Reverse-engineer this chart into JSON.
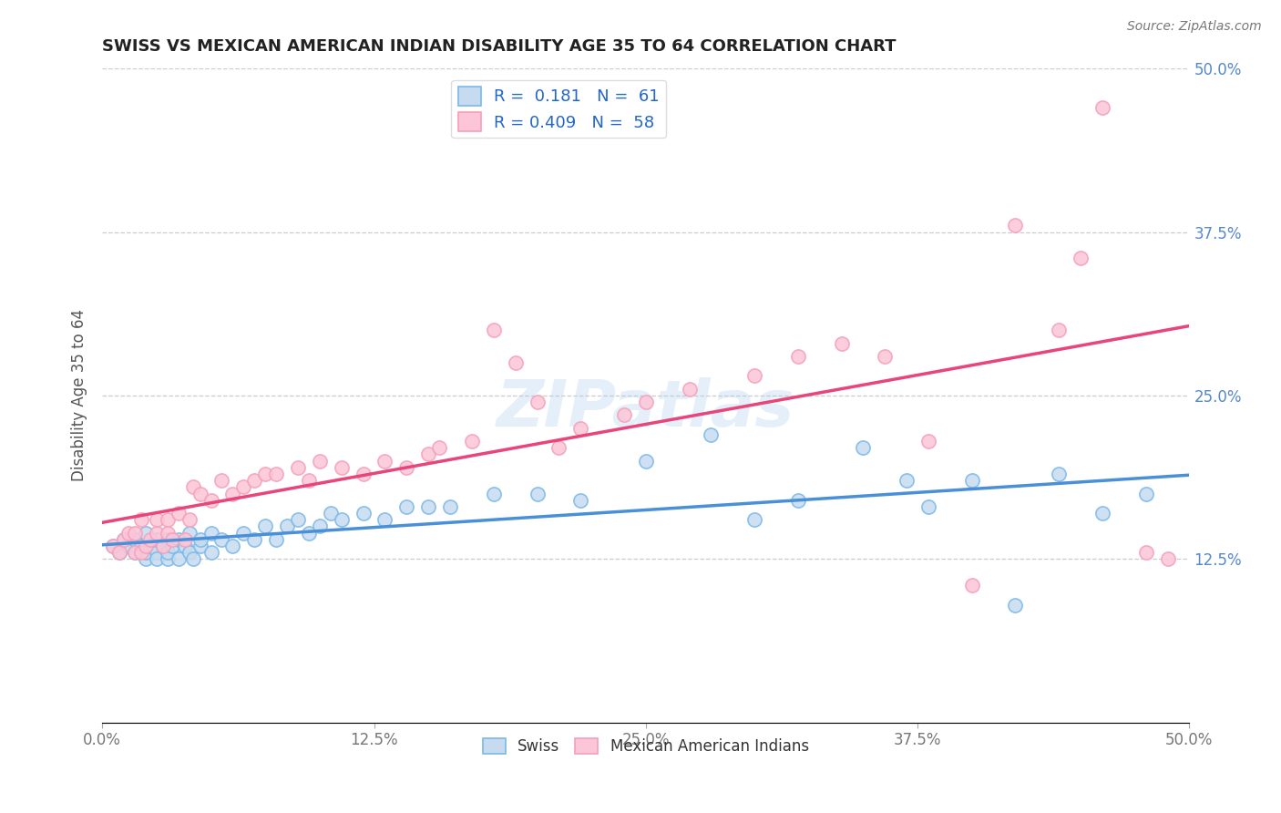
{
  "title": "SWISS VS MEXICAN AMERICAN INDIAN DISABILITY AGE 35 TO 64 CORRELATION CHART",
  "source_text": "Source: ZipAtlas.com",
  "ylabel": "Disability Age 35 to 64",
  "xlim": [
    0.0,
    0.5
  ],
  "ylim": [
    0.0,
    0.5
  ],
  "xtick_vals": [
    0.0,
    0.125,
    0.25,
    0.375,
    0.5
  ],
  "xtick_labels": [
    "0.0%",
    "12.5%",
    "25.0%",
    "37.5%",
    "50.0%"
  ],
  "ytick_vals": [
    0.0,
    0.125,
    0.25,
    0.375,
    0.5
  ],
  "ytick_labels_right": [
    "",
    "12.5%",
    "25.0%",
    "37.5%",
    "50.0%"
  ],
  "legend1_R": "0.181",
  "legend1_N": "61",
  "legend2_R": "0.409",
  "legend2_N": "58",
  "blue_color": "#7ab8e8",
  "pink_color": "#f4a0b8",
  "blue_fill": "#c6dbef",
  "pink_fill": "#fcc5d8",
  "trend_blue": "#4a90d9",
  "trend_pink": "#e8457a",
  "swiss_x": [
    0.005,
    0.008,
    0.01,
    0.012,
    0.015,
    0.015,
    0.018,
    0.02,
    0.02,
    0.02,
    0.022,
    0.025,
    0.025,
    0.025,
    0.028,
    0.03,
    0.03,
    0.03,
    0.032,
    0.035,
    0.035,
    0.038,
    0.04,
    0.04,
    0.042,
    0.045,
    0.045,
    0.05,
    0.05,
    0.055,
    0.06,
    0.065,
    0.07,
    0.075,
    0.08,
    0.085,
    0.09,
    0.095,
    0.1,
    0.105,
    0.11,
    0.12,
    0.13,
    0.14,
    0.15,
    0.16,
    0.18,
    0.2,
    0.22,
    0.25,
    0.28,
    0.3,
    0.32,
    0.35,
    0.37,
    0.38,
    0.4,
    0.42,
    0.44,
    0.46,
    0.48
  ],
  "swiss_y": [
    0.135,
    0.13,
    0.14,
    0.135,
    0.13,
    0.14,
    0.135,
    0.125,
    0.13,
    0.145,
    0.135,
    0.13,
    0.125,
    0.14,
    0.135,
    0.125,
    0.13,
    0.14,
    0.135,
    0.125,
    0.14,
    0.135,
    0.13,
    0.145,
    0.125,
    0.135,
    0.14,
    0.13,
    0.145,
    0.14,
    0.135,
    0.145,
    0.14,
    0.15,
    0.14,
    0.15,
    0.155,
    0.145,
    0.15,
    0.16,
    0.155,
    0.16,
    0.155,
    0.165,
    0.165,
    0.165,
    0.175,
    0.175,
    0.17,
    0.2,
    0.22,
    0.155,
    0.17,
    0.21,
    0.185,
    0.165,
    0.185,
    0.09,
    0.19,
    0.16,
    0.175
  ],
  "mai_x": [
    0.005,
    0.008,
    0.01,
    0.012,
    0.015,
    0.015,
    0.018,
    0.018,
    0.02,
    0.022,
    0.025,
    0.025,
    0.028,
    0.03,
    0.03,
    0.032,
    0.035,
    0.038,
    0.04,
    0.042,
    0.045,
    0.05,
    0.055,
    0.06,
    0.065,
    0.07,
    0.075,
    0.08,
    0.09,
    0.095,
    0.1,
    0.11,
    0.12,
    0.13,
    0.14,
    0.15,
    0.155,
    0.17,
    0.18,
    0.19,
    0.2,
    0.21,
    0.22,
    0.24,
    0.25,
    0.27,
    0.3,
    0.32,
    0.34,
    0.36,
    0.38,
    0.4,
    0.42,
    0.44,
    0.45,
    0.46,
    0.48,
    0.49
  ],
  "mai_y": [
    0.135,
    0.13,
    0.14,
    0.145,
    0.13,
    0.145,
    0.13,
    0.155,
    0.135,
    0.14,
    0.145,
    0.155,
    0.135,
    0.145,
    0.155,
    0.14,
    0.16,
    0.14,
    0.155,
    0.18,
    0.175,
    0.17,
    0.185,
    0.175,
    0.18,
    0.185,
    0.19,
    0.19,
    0.195,
    0.185,
    0.2,
    0.195,
    0.19,
    0.2,
    0.195,
    0.205,
    0.21,
    0.215,
    0.3,
    0.275,
    0.245,
    0.21,
    0.225,
    0.235,
    0.245,
    0.255,
    0.265,
    0.28,
    0.29,
    0.28,
    0.215,
    0.105,
    0.38,
    0.3,
    0.355,
    0.47,
    0.13,
    0.125
  ]
}
